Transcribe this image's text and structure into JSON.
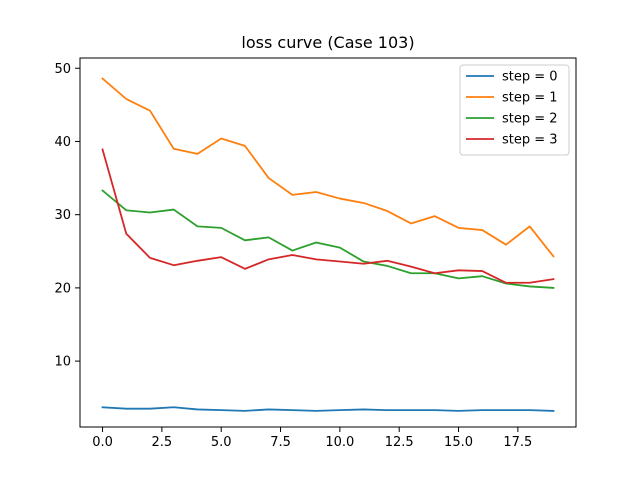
{
  "chart_data": {
    "type": "line",
    "title": "loss curve (Case 103)",
    "xlabel": "",
    "ylabel": "",
    "x": [
      0,
      1,
      2,
      3,
      4,
      5,
      6,
      7,
      8,
      9,
      10,
      11,
      12,
      13,
      14,
      15,
      16,
      17,
      18,
      19
    ],
    "xlim": [
      -0.95,
      19.95
    ],
    "ylim": [
      1.0,
      51.4
    ],
    "xticks": [
      0.0,
      2.5,
      5.0,
      7.5,
      10.0,
      12.5,
      15.0,
      17.5
    ],
    "xtick_labels": [
      "0.0",
      "2.5",
      "5.0",
      "7.5",
      "10.0",
      "12.5",
      "15.0",
      "17.5"
    ],
    "yticks": [
      10,
      20,
      30,
      40,
      50
    ],
    "ytick_labels": [
      "10",
      "20",
      "30",
      "40",
      "50"
    ],
    "grid": false,
    "legend": "top-right",
    "series": [
      {
        "name": "step = 0",
        "color": "#1f77b4",
        "values": [
          3.7,
          3.5,
          3.5,
          3.7,
          3.4,
          3.3,
          3.2,
          3.4,
          3.3,
          3.2,
          3.3,
          3.4,
          3.3,
          3.3,
          3.3,
          3.2,
          3.3,
          3.3,
          3.3,
          3.2
        ]
      },
      {
        "name": "step = 1",
        "color": "#ff7f0e",
        "values": [
          48.6,
          45.8,
          44.2,
          39.0,
          38.3,
          40.4,
          39.4,
          35.0,
          32.7,
          33.1,
          32.2,
          31.6,
          30.5,
          28.8,
          29.8,
          28.2,
          27.9,
          25.9,
          28.4,
          24.3
        ]
      },
      {
        "name": "step = 2",
        "color": "#2ca02c",
        "values": [
          33.3,
          30.6,
          30.3,
          30.7,
          28.4,
          28.2,
          26.5,
          26.9,
          25.1,
          26.2,
          25.5,
          23.6,
          23.0,
          22.0,
          22.0,
          21.3,
          21.6,
          20.6,
          20.2,
          20.0
        ]
      },
      {
        "name": "step = 3",
        "color": "#d62728",
        "values": [
          38.9,
          27.4,
          24.1,
          23.1,
          23.7,
          24.2,
          22.6,
          23.9,
          24.5,
          23.9,
          23.6,
          23.3,
          23.7,
          22.9,
          22.0,
          22.4,
          22.3,
          20.7,
          20.7,
          21.2
        ]
      }
    ]
  }
}
